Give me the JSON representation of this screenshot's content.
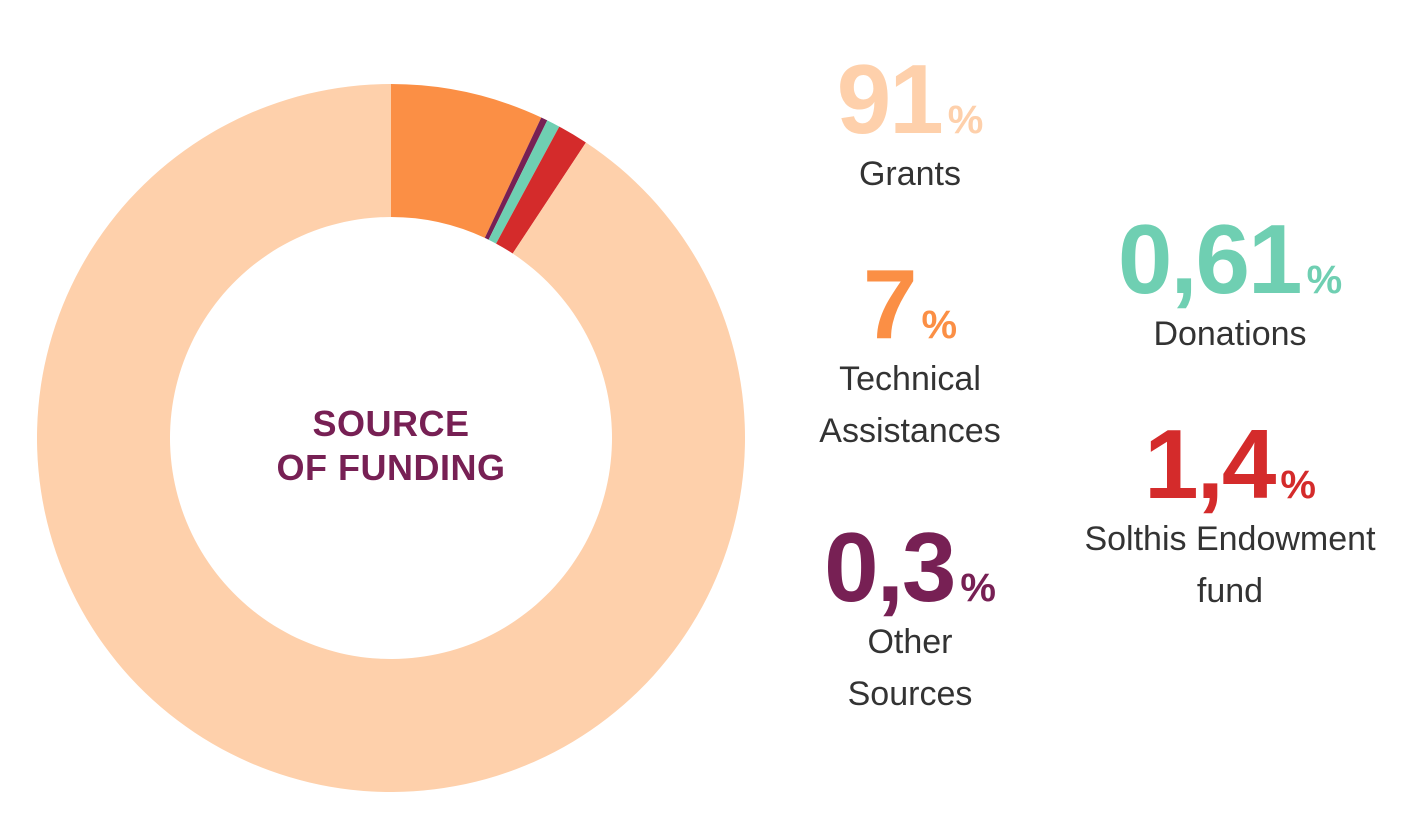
{
  "chart_data": {
    "type": "pie",
    "title": "SOURCE OF FUNDING",
    "title_lines": [
      "SOURCE",
      "OF FUNDING"
    ],
    "hole": "donut",
    "slices": [
      {
        "label": "Technical Assistances",
        "value": 7,
        "display_value": "7",
        "color": "#FB8F45",
        "label_lines": [
          "Technical",
          "Assistances"
        ]
      },
      {
        "label": "Other Sources",
        "value": 0.3,
        "display_value": "0,3",
        "color": "#772054",
        "label_lines": [
          "Other",
          "Sources"
        ]
      },
      {
        "label": "Donations",
        "value": 0.61,
        "display_value": "0,61",
        "color": "#6FCFB2",
        "label_lines": [
          "Donations"
        ]
      },
      {
        "label": "Solthis Endowment fund",
        "value": 1.4,
        "display_value": "1,4",
        "color": "#D42B2B",
        "label_lines": [
          "Solthis Endowment",
          "fund"
        ]
      },
      {
        "label": "Grants",
        "value": 91,
        "display_value": "91",
        "color": "#FED0AB",
        "label_lines": [
          "Grants"
        ]
      }
    ],
    "percent_symbol": "%",
    "legend": "right",
    "grid": false
  }
}
